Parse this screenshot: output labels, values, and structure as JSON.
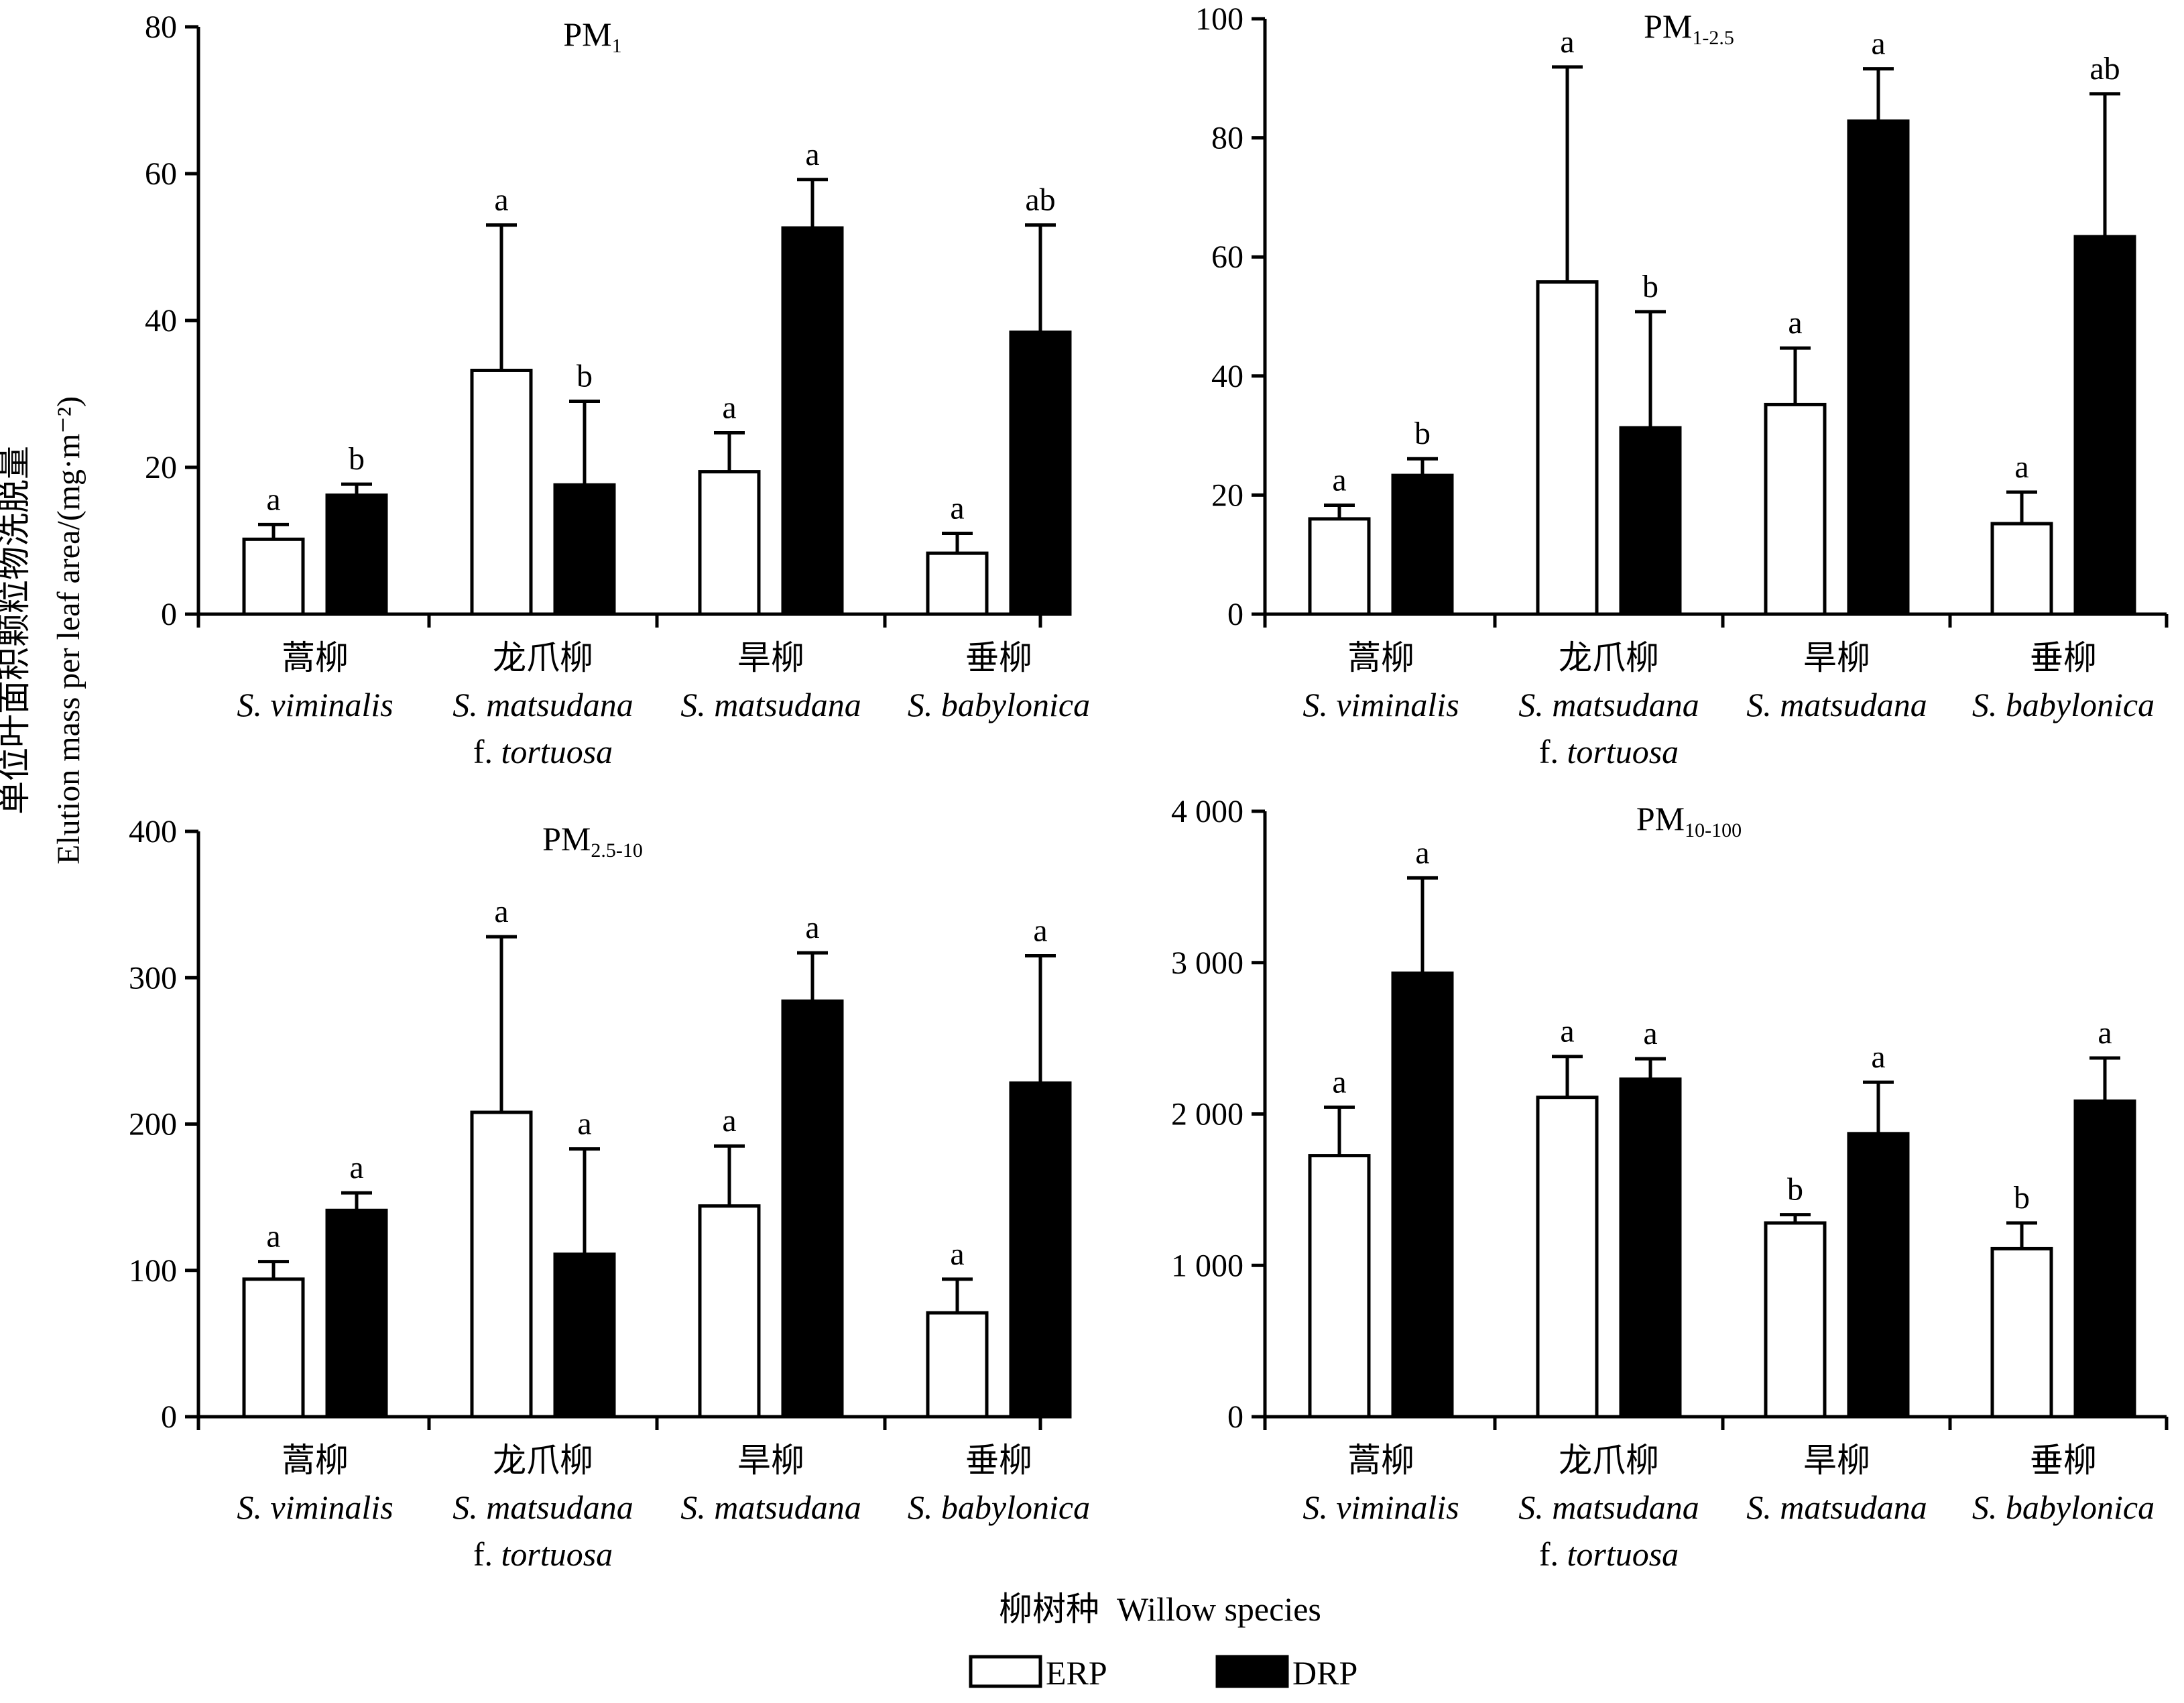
{
  "figure": {
    "ylabel_cn": "单位叶面积颗粒物洗脱量",
    "ylabel_en": "Elution mass per leaf area/(mg·m⁻²)",
    "xlabel_cn": "柳树种",
    "xlabel_en": "Willow species"
  },
  "chart_data": [
    {
      "type": "bar",
      "title_main": "PM",
      "title_sub": "1",
      "categories": [
        {
          "cn": "蒿柳",
          "latin": "S. viminalis",
          "forma": "",
          "forma_name": ""
        },
        {
          "cn": "龙爪柳",
          "latin": "S. matsudana",
          "forma": "f.",
          "forma_name": "tortuosa"
        },
        {
          "cn": "旱柳",
          "latin": "S. matsudana",
          "forma": "",
          "forma_name": ""
        },
        {
          "cn": "垂柳",
          "latin": "S. babylonica",
          "forma": "",
          "forma_name": ""
        }
      ],
      "ylim": [
        0,
        80
      ],
      "yticks": [
        0,
        20,
        40,
        60,
        80
      ],
      "ytick_labels": [
        "0",
        "20",
        "40",
        "60",
        "80"
      ],
      "series": [
        {
          "name": "ERP",
          "fill": "#ffffff",
          "values": [
            10.2,
            33.2,
            19.4,
            8.3
          ],
          "errors": [
            2.0,
            19.8,
            5.3,
            2.7
          ],
          "labels": [
            "a",
            "a",
            "a",
            "a"
          ]
        },
        {
          "name": "DRP",
          "fill": "#000000",
          "values": [
            16.2,
            17.6,
            52.6,
            38.4
          ],
          "errors": [
            1.5,
            11.4,
            6.6,
            14.6
          ],
          "labels": [
            "b",
            "b",
            "a",
            "ab"
          ]
        }
      ]
    },
    {
      "type": "bar",
      "title_main": "PM",
      "title_sub": "1-2.5",
      "categories": [
        {
          "cn": "蒿柳",
          "latin": "S. viminalis",
          "forma": "",
          "forma_name": ""
        },
        {
          "cn": "龙爪柳",
          "latin": "S. matsudana",
          "forma": "f.",
          "forma_name": "tortuosa"
        },
        {
          "cn": "旱柳",
          "latin": "S. matsudana",
          "forma": "",
          "forma_name": ""
        },
        {
          "cn": "垂柳",
          "latin": "S. babylonica",
          "forma": "",
          "forma_name": ""
        }
      ],
      "ylim": [
        0,
        100
      ],
      "yticks": [
        0,
        20,
        40,
        60,
        80,
        100
      ],
      "ytick_labels": [
        "0",
        "20",
        "40",
        "60",
        "80",
        "100"
      ],
      "series": [
        {
          "name": "ERP",
          "fill": "#ffffff",
          "values": [
            16.0,
            55.8,
            35.2,
            15.2
          ],
          "errors": [
            2.3,
            36.1,
            9.5,
            5.3
          ],
          "labels": [
            "a",
            "a",
            "a",
            "a"
          ]
        },
        {
          "name": "DRP",
          "fill": "#000000",
          "values": [
            23.3,
            31.3,
            82.8,
            63.4
          ],
          "errors": [
            2.8,
            19.5,
            8.8,
            24.0
          ],
          "labels": [
            "b",
            "b",
            "a",
            "ab"
          ]
        }
      ]
    },
    {
      "type": "bar",
      "title_main": "PM",
      "title_sub": "2.5-10",
      "categories": [
        {
          "cn": "蒿柳",
          "latin": "S. viminalis",
          "forma": "",
          "forma_name": ""
        },
        {
          "cn": "龙爪柳",
          "latin": "S. matsudana",
          "forma": "f.",
          "forma_name": "tortuosa"
        },
        {
          "cn": "旱柳",
          "latin": "S. matsudana",
          "forma": "",
          "forma_name": ""
        },
        {
          "cn": "垂柳",
          "latin": "S. babylonica",
          "forma": "",
          "forma_name": ""
        }
      ],
      "ylim": [
        0,
        400
      ],
      "yticks": [
        0,
        100,
        200,
        300,
        400
      ],
      "ytick_labels": [
        "0",
        "100",
        "200",
        "300",
        "400"
      ],
      "series": [
        {
          "name": "ERP",
          "fill": "#ffffff",
          "values": [
            94,
            208,
            144,
            71
          ],
          "errors": [
            12,
            120,
            41,
            23
          ],
          "labels": [
            "a",
            "a",
            "a",
            "a"
          ]
        },
        {
          "name": "DRP",
          "fill": "#000000",
          "values": [
            141,
            111,
            284,
            228
          ],
          "errors": [
            12,
            72,
            33,
            87
          ],
          "labels": [
            "a",
            "a",
            "a",
            "a"
          ]
        }
      ]
    },
    {
      "type": "bar",
      "title_main": "PM",
      "title_sub": "10-100",
      "categories": [
        {
          "cn": "蒿柳",
          "latin": "S. viminalis",
          "forma": "",
          "forma_name": ""
        },
        {
          "cn": "龙爪柳",
          "latin": "S. matsudana",
          "forma": "f.",
          "forma_name": "tortuosa"
        },
        {
          "cn": "旱柳",
          "latin": "S. matsudana",
          "forma": "",
          "forma_name": ""
        },
        {
          "cn": "垂柳",
          "latin": "S. babylonica",
          "forma": "",
          "forma_name": ""
        }
      ],
      "ylim": [
        0,
        4000
      ],
      "yticks": [
        0,
        1000,
        2000,
        3000,
        4000
      ],
      "ytick_labels": [
        "0",
        "1 000",
        "2 000",
        "3 000",
        "4 000"
      ],
      "series": [
        {
          "name": "ERP",
          "fill": "#ffffff",
          "values": [
            1725,
            2110,
            1280,
            1110
          ],
          "errors": [
            320,
            270,
            55,
            170
          ],
          "labels": [
            "a",
            "a",
            "b",
            "b"
          ]
        },
        {
          "name": "DRP",
          "fill": "#000000",
          "values": [
            2930,
            2230,
            1870,
            2085
          ],
          "errors": [
            630,
            135,
            340,
            285
          ],
          "labels": [
            "a",
            "a",
            "a",
            "a"
          ]
        }
      ]
    }
  ],
  "legend": {
    "items": [
      {
        "label": "ERP",
        "fill": "#ffffff"
      },
      {
        "label": "DRP",
        "fill": "#000000"
      }
    ]
  }
}
